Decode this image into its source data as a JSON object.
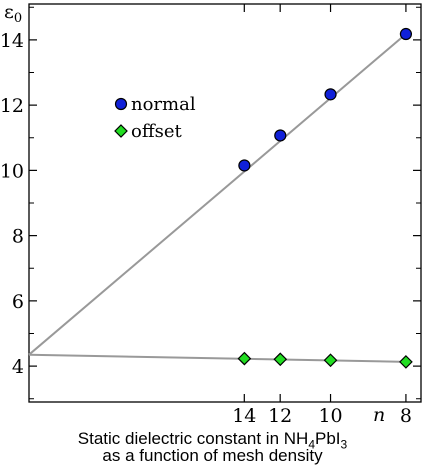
{
  "chart_data": {
    "type": "scatter",
    "ylabel": "ε",
    "ylabel_sub": "0",
    "xlabel": "n",
    "x_ticks": [
      "14",
      "12",
      "10",
      "8"
    ],
    "x_values_inverse_n": [
      0.0714,
      0.0833,
      0.1,
      0.125
    ],
    "y_ticks": [
      4,
      6,
      8,
      10,
      12,
      14
    ],
    "ylim": [
      2.9,
      15.1
    ],
    "xlim_inverse_n": [
      0.0,
      0.13
    ],
    "series": [
      {
        "name": "normal",
        "marker": "circle",
        "color": "#1020d8",
        "n": [
          14,
          12,
          10,
          8
        ],
        "values": [
          10.15,
          11.07,
          12.33,
          14.18
        ],
        "fit_intercept": 4.35
      },
      {
        "name": "offset",
        "marker": "diamond",
        "color": "#22dd22",
        "n": [
          14,
          12,
          10,
          8
        ],
        "values": [
          4.23,
          4.21,
          4.18,
          4.13
        ],
        "fit_intercept": 4.35
      }
    ],
    "legend_position": "upper-left",
    "grid": false
  },
  "caption": {
    "line1_prefix": "Static dielectric constant in NH",
    "sub1": "4",
    "line1_mid": "PbI",
    "sub2": "3",
    "line2": "as a function of mesh density"
  }
}
